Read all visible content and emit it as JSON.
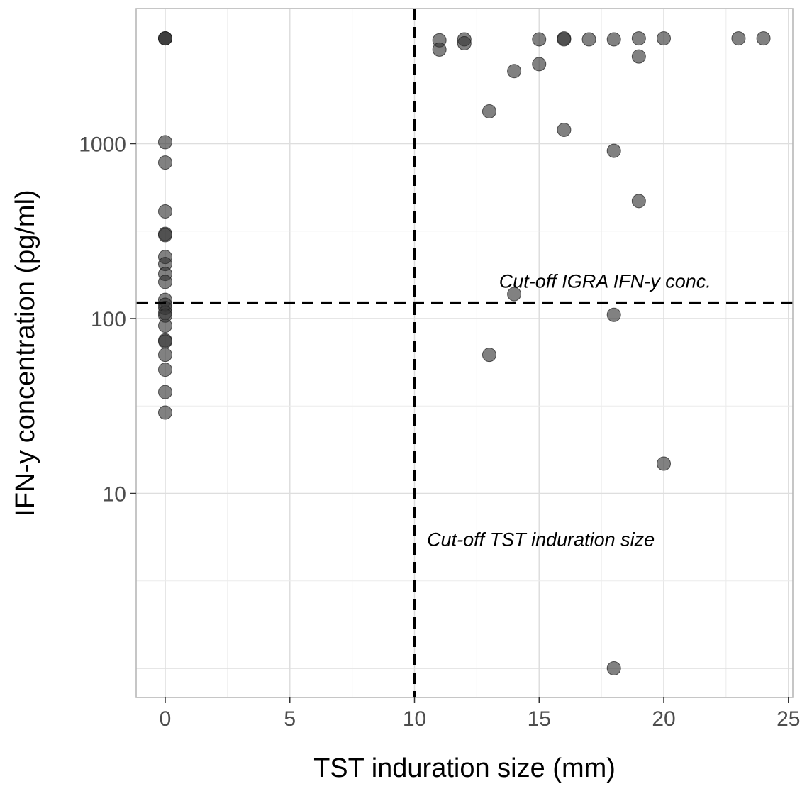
{
  "chart_data": {
    "type": "scatter",
    "title": "",
    "xlabel": "TST induration size (mm)",
    "ylabel": "IFN-y concentration (pg/ml)",
    "xlim": [
      -1.2,
      25.2
    ],
    "ylim": [
      0.75,
      5000
    ],
    "y_scale": "log",
    "x_ticks": [
      0,
      5,
      10,
      15,
      20,
      25
    ],
    "x_tick_labels": [
      "0",
      "5",
      "10",
      "15",
      "20",
      "25"
    ],
    "y_ticks": [
      10,
      100,
      1000
    ],
    "y_tick_labels": [
      "10",
      "100",
      "1000"
    ],
    "grid": true,
    "point_color": "#333333",
    "point_opacity": 0.62,
    "reference_lines": [
      {
        "orientation": "vertical",
        "value": 10,
        "style": "dashed",
        "color": "#000000"
      },
      {
        "orientation": "horizontal",
        "value": 123,
        "style": "dashed",
        "color": "#000000"
      }
    ],
    "annotations": [
      {
        "text": "Cut-off IGRA IFN-y conc.",
        "x": 21.9,
        "y": 150,
        "anchor": "end"
      },
      {
        "text": "Cut-off TST induration size",
        "x": 10.5,
        "y": 5.0,
        "anchor": "start"
      }
    ],
    "points": [
      {
        "x": 0,
        "y": 4000
      },
      {
        "x": 0,
        "y": 4000
      },
      {
        "x": 0,
        "y": 4000
      },
      {
        "x": 0,
        "y": 1020
      },
      {
        "x": 0,
        "y": 780
      },
      {
        "x": 0,
        "y": 410
      },
      {
        "x": 0,
        "y": 305
      },
      {
        "x": 0,
        "y": 300
      },
      {
        "x": 0,
        "y": 225
      },
      {
        "x": 0,
        "y": 205
      },
      {
        "x": 0,
        "y": 180
      },
      {
        "x": 0,
        "y": 162
      },
      {
        "x": 0,
        "y": 128
      },
      {
        "x": 0,
        "y": 120
      },
      {
        "x": 0,
        "y": 115
      },
      {
        "x": 0,
        "y": 108
      },
      {
        "x": 0,
        "y": 104
      },
      {
        "x": 0,
        "y": 91
      },
      {
        "x": 0,
        "y": 75
      },
      {
        "x": 0,
        "y": 74
      },
      {
        "x": 0,
        "y": 62
      },
      {
        "x": 0,
        "y": 51
      },
      {
        "x": 0,
        "y": 38
      },
      {
        "x": 0,
        "y": 29
      },
      {
        "x": 11,
        "y": 3900
      },
      {
        "x": 11,
        "y": 3450
      },
      {
        "x": 12,
        "y": 3950
      },
      {
        "x": 12,
        "y": 3750
      },
      {
        "x": 13,
        "y": 1530
      },
      {
        "x": 13,
        "y": 62
      },
      {
        "x": 14,
        "y": 2600
      },
      {
        "x": 14,
        "y": 138
      },
      {
        "x": 15,
        "y": 3950
      },
      {
        "x": 15,
        "y": 2850
      },
      {
        "x": 16,
        "y": 4000
      },
      {
        "x": 16,
        "y": 3950
      },
      {
        "x": 16,
        "y": 1200
      },
      {
        "x": 17,
        "y": 3950
      },
      {
        "x": 18,
        "y": 3950
      },
      {
        "x": 18,
        "y": 910
      },
      {
        "x": 18,
        "y": 105
      },
      {
        "x": 18,
        "y": 1.0
      },
      {
        "x": 19,
        "y": 4000
      },
      {
        "x": 19,
        "y": 3150
      },
      {
        "x": 19,
        "y": 470
      },
      {
        "x": 20,
        "y": 4000
      },
      {
        "x": 20,
        "y": 14.8
      },
      {
        "x": 23,
        "y": 4000
      },
      {
        "x": 24,
        "y": 4000
      }
    ]
  }
}
